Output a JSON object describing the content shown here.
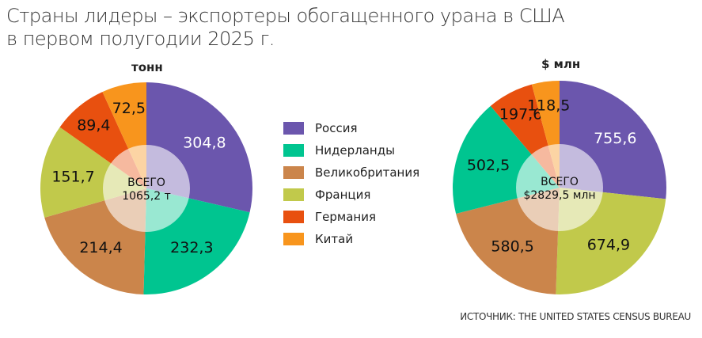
{
  "title_line1": "Страны лидеры – экспортеры обогащенного урана в США",
  "title_line2": "в первом полугодии 2025 г.",
  "source": "ИСТОЧНИК: THE UNITED STATES CENSUS BUREAU",
  "legend": [
    {
      "label": "Россия",
      "color": "#6b56ad"
    },
    {
      "label": "Нидерланды",
      "color": "#00c590"
    },
    {
      "label": "Великобритания",
      "color": "#cb854b"
    },
    {
      "label": "Франция",
      "color": "#c1c94b"
    },
    {
      "label": "Германия",
      "color": "#e8500f"
    },
    {
      "label": "Китай",
      "color": "#f8951d"
    }
  ],
  "chart_data": [
    {
      "type": "pie",
      "unit_label": "тонн",
      "center_label": "ВСЕГО",
      "center_value": "1065,2 т",
      "slices": [
        {
          "name": "Россия",
          "value": 304.8,
          "label": "304,8",
          "color": "#6b56ad"
        },
        {
          "name": "Нидерланды",
          "value": 232.3,
          "label": "232,3",
          "color": "#00c590"
        },
        {
          "name": "Великобритания",
          "value": 214.4,
          "label": "214,4",
          "color": "#cb854b"
        },
        {
          "name": "Франция",
          "value": 151.7,
          "label": "151,7",
          "color": "#c1c94b"
        },
        {
          "name": "Германия",
          "value": 89.4,
          "label": "89,4",
          "color": "#e8500f"
        },
        {
          "name": "Китай",
          "value": 72.5,
          "label": "72,5",
          "color": "#f8951d"
        }
      ]
    },
    {
      "type": "pie",
      "unit_label": "$ млн",
      "center_label": "ВСЕГО",
      "center_value": "$2829,5 млн",
      "slices": [
        {
          "name": "Россия",
          "value": 755.6,
          "label": "755,6",
          "color": "#6b56ad"
        },
        {
          "name": "Франция",
          "value": 674.9,
          "label": "674,9",
          "color": "#c1c94b"
        },
        {
          "name": "Великобритания",
          "value": 580.5,
          "label": "580,5",
          "color": "#cb854b"
        },
        {
          "name": "Нидерланды",
          "value": 502.5,
          "label": "502,5",
          "color": "#00c590"
        },
        {
          "name": "Германия",
          "value": 197.6,
          "label": "197,6",
          "color": "#e8500f"
        },
        {
          "name": "Китай",
          "value": 118.5,
          "label": "118,5",
          "color": "#f8951d"
        }
      ]
    }
  ]
}
